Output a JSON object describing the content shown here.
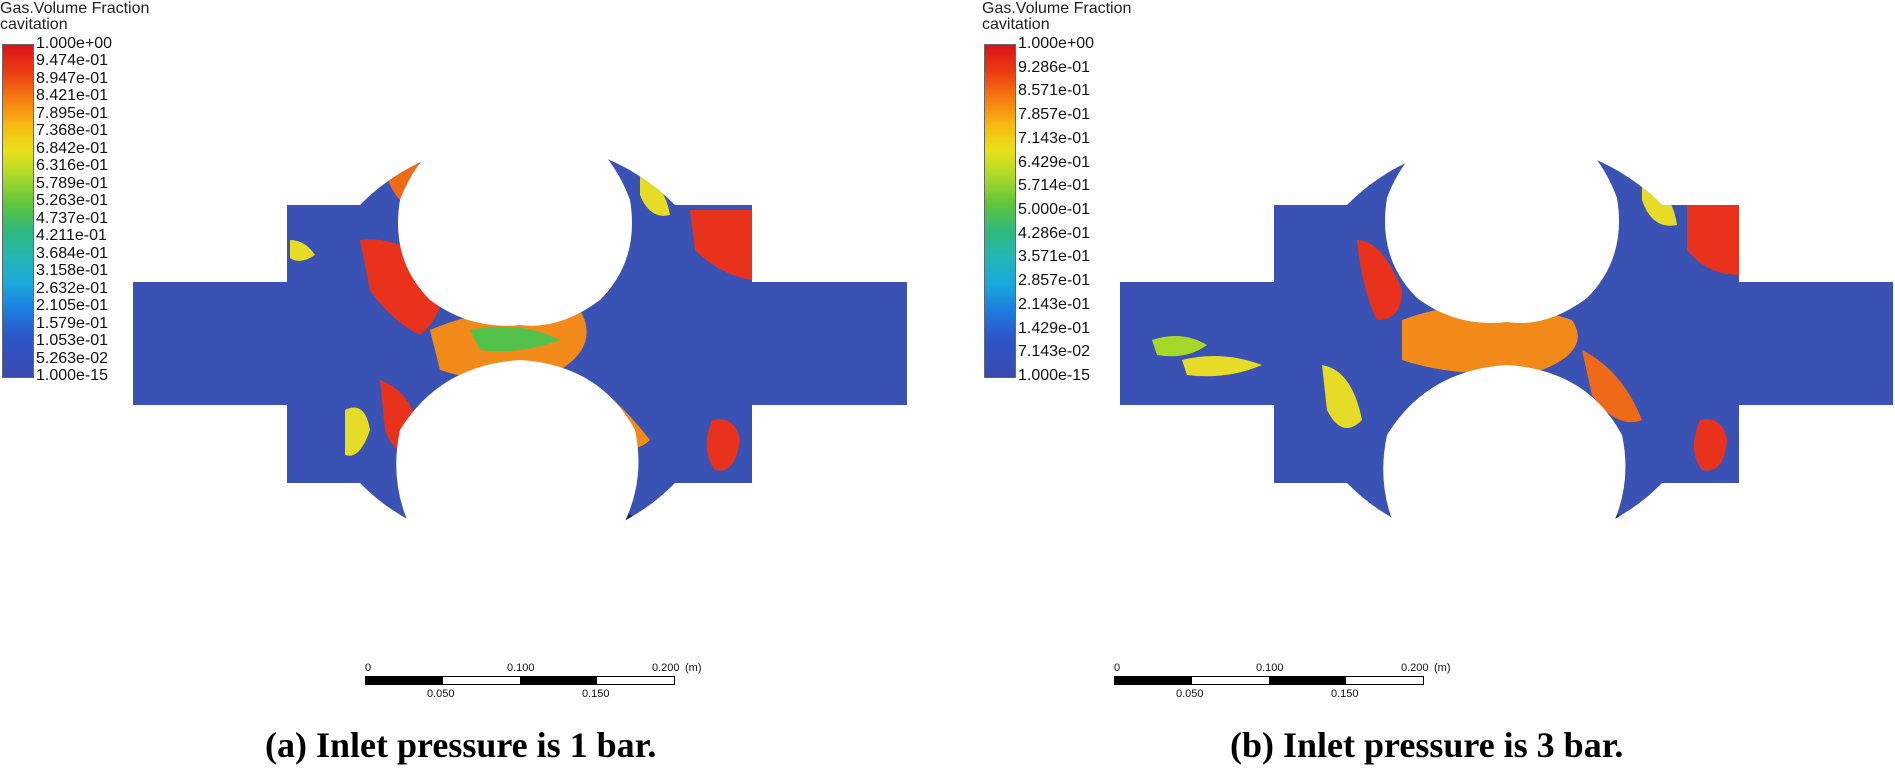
{
  "panels": [
    {
      "legend": {
        "title": "Gas.Volume Fraction",
        "subtitle": "cavitation",
        "ticks": [
          "1.000e+00",
          "9.474e-01",
          "8.947e-01",
          "8.421e-01",
          "7.895e-01",
          "7.368e-01",
          "6.842e-01",
          "6.316e-01",
          "5.789e-01",
          "5.263e-01",
          "4.737e-01",
          "4.211e-01",
          "3.684e-01",
          "3.158e-01",
          "2.632e-01",
          "2.105e-01",
          "1.579e-01",
          "1.053e-01",
          "5.263e-02",
          "1.000e-15"
        ]
      },
      "scale": {
        "top_labels": [
          "0",
          "0.100",
          "0.200"
        ],
        "unit": "(m)",
        "bottom_labels": [
          "0.050",
          "0.150"
        ]
      },
      "caption": "(a) Inlet pressure is 1 bar."
    },
    {
      "legend": {
        "title": "Gas.Volume Fraction",
        "subtitle": "cavitation",
        "ticks": [
          "1.000e+00",
          "9.286e-01",
          "8.571e-01",
          "7.857e-01",
          "7.143e-01",
          "6.429e-01",
          "5.714e-01",
          "5.000e-01",
          "4.286e-01",
          "3.571e-01",
          "2.857e-01",
          "2.143e-01",
          "1.429e-01",
          "7.143e-02",
          "1.000e-15"
        ]
      },
      "scale": {
        "top_labels": [
          "0",
          "0.100",
          "0.200"
        ],
        "unit": "(m)",
        "bottom_labels": [
          "0.050",
          "0.150"
        ]
      },
      "caption": "(b) Inlet pressure is 3 bar."
    }
  ],
  "colors": {
    "fluid_blue": "#3a52b4",
    "gas_red": "#e8321c",
    "gas_orange": "#f28a1a",
    "gas_yellow": "#e6dc28",
    "gas_green": "#52c24a",
    "gas_cyan": "#20b8c8",
    "dark_rotor": "#1c2a4a"
  }
}
